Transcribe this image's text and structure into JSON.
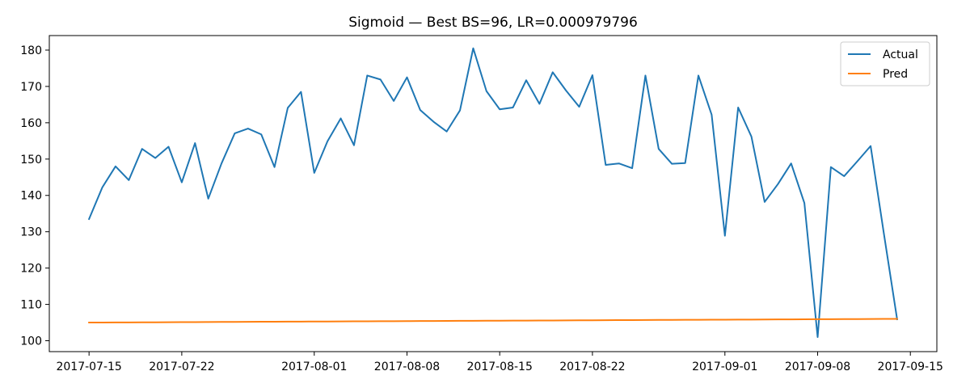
{
  "chart_data": {
    "type": "line",
    "title": "Sigmoid — Best BS=96, LR=0.000979796",
    "xlabel": "",
    "ylabel": "",
    "x_start": "2017-07-15",
    "x": [
      "2017-07-15",
      "2017-07-16",
      "2017-07-17",
      "2017-07-18",
      "2017-07-19",
      "2017-07-20",
      "2017-07-21",
      "2017-07-22",
      "2017-07-23",
      "2017-07-24",
      "2017-07-25",
      "2017-07-26",
      "2017-07-27",
      "2017-07-28",
      "2017-07-29",
      "2017-07-30",
      "2017-07-31",
      "2017-08-01",
      "2017-08-02",
      "2017-08-03",
      "2017-08-04",
      "2017-08-05",
      "2017-08-06",
      "2017-08-07",
      "2017-08-08",
      "2017-08-09",
      "2017-08-10",
      "2017-08-11",
      "2017-08-12",
      "2017-08-13",
      "2017-08-14",
      "2017-08-15",
      "2017-08-16",
      "2017-08-17",
      "2017-08-18",
      "2017-08-19",
      "2017-08-20",
      "2017-08-21",
      "2017-08-22",
      "2017-08-23",
      "2017-08-24",
      "2017-08-25",
      "2017-08-26",
      "2017-08-27",
      "2017-08-28",
      "2017-08-29",
      "2017-08-30",
      "2017-08-31",
      "2017-09-01",
      "2017-09-02",
      "2017-09-03",
      "2017-09-04",
      "2017-09-05",
      "2017-09-06",
      "2017-09-07",
      "2017-09-08",
      "2017-09-09",
      "2017-09-10",
      "2017-09-11",
      "2017-09-12",
      "2017-09-13",
      "2017-09-14"
    ],
    "series": [
      {
        "name": "Actual",
        "color": "#1f77b4",
        "values": [
          133.5,
          142.2,
          148.0,
          144.2,
          152.8,
          150.3,
          153.4,
          143.6,
          154.4,
          139.1,
          148.8,
          157.1,
          158.4,
          156.8,
          147.8,
          164.1,
          168.5,
          146.2,
          154.9,
          161.2,
          153.8,
          173.0,
          171.9,
          166.0,
          172.5,
          163.5,
          160.3,
          157.6,
          163.4,
          180.5,
          168.7,
          163.7,
          164.2,
          171.7,
          165.2,
          173.9,
          168.9,
          164.4,
          173.1,
          148.4,
          148.8,
          147.5,
          173.0,
          152.8,
          148.7,
          148.9,
          173.0,
          162.2,
          128.9,
          164.2,
          156.2,
          138.2,
          143.1,
          148.8,
          137.9,
          101.0,
          147.8,
          145.3,
          149.4,
          153.6,
          129.5,
          105.9
        ]
      },
      {
        "name": "Pred",
        "color": "#ff7f0e",
        "values": [
          105.0,
          105.02,
          105.03,
          105.05,
          105.07,
          105.08,
          105.1,
          105.12,
          105.13,
          105.15,
          105.17,
          105.18,
          105.2,
          105.22,
          105.23,
          105.25,
          105.27,
          105.28,
          105.3,
          105.32,
          105.33,
          105.35,
          105.37,
          105.38,
          105.4,
          105.42,
          105.43,
          105.45,
          105.47,
          105.48,
          105.5,
          105.52,
          105.53,
          105.55,
          105.57,
          105.58,
          105.6,
          105.62,
          105.63,
          105.65,
          105.67,
          105.68,
          105.7,
          105.72,
          105.73,
          105.75,
          105.77,
          105.78,
          105.8,
          105.82,
          105.83,
          105.85,
          105.87,
          105.88,
          105.9,
          105.92,
          105.93,
          105.95,
          105.97,
          105.98,
          106.0,
          106.02
        ]
      }
    ],
    "xlim": [
      "2017-07-12",
      "2017-09-17"
    ],
    "ylim": [
      97.0,
      184.0
    ],
    "yticks": [
      100,
      110,
      120,
      130,
      140,
      150,
      160,
      170,
      180
    ],
    "xticks": [
      "2017-07-15",
      "2017-07-22",
      "2017-08-01",
      "2017-08-08",
      "2017-08-15",
      "2017-08-22",
      "2017-09-01",
      "2017-09-08",
      "2017-09-15"
    ],
    "grid": false,
    "legend_position": "top-right"
  }
}
